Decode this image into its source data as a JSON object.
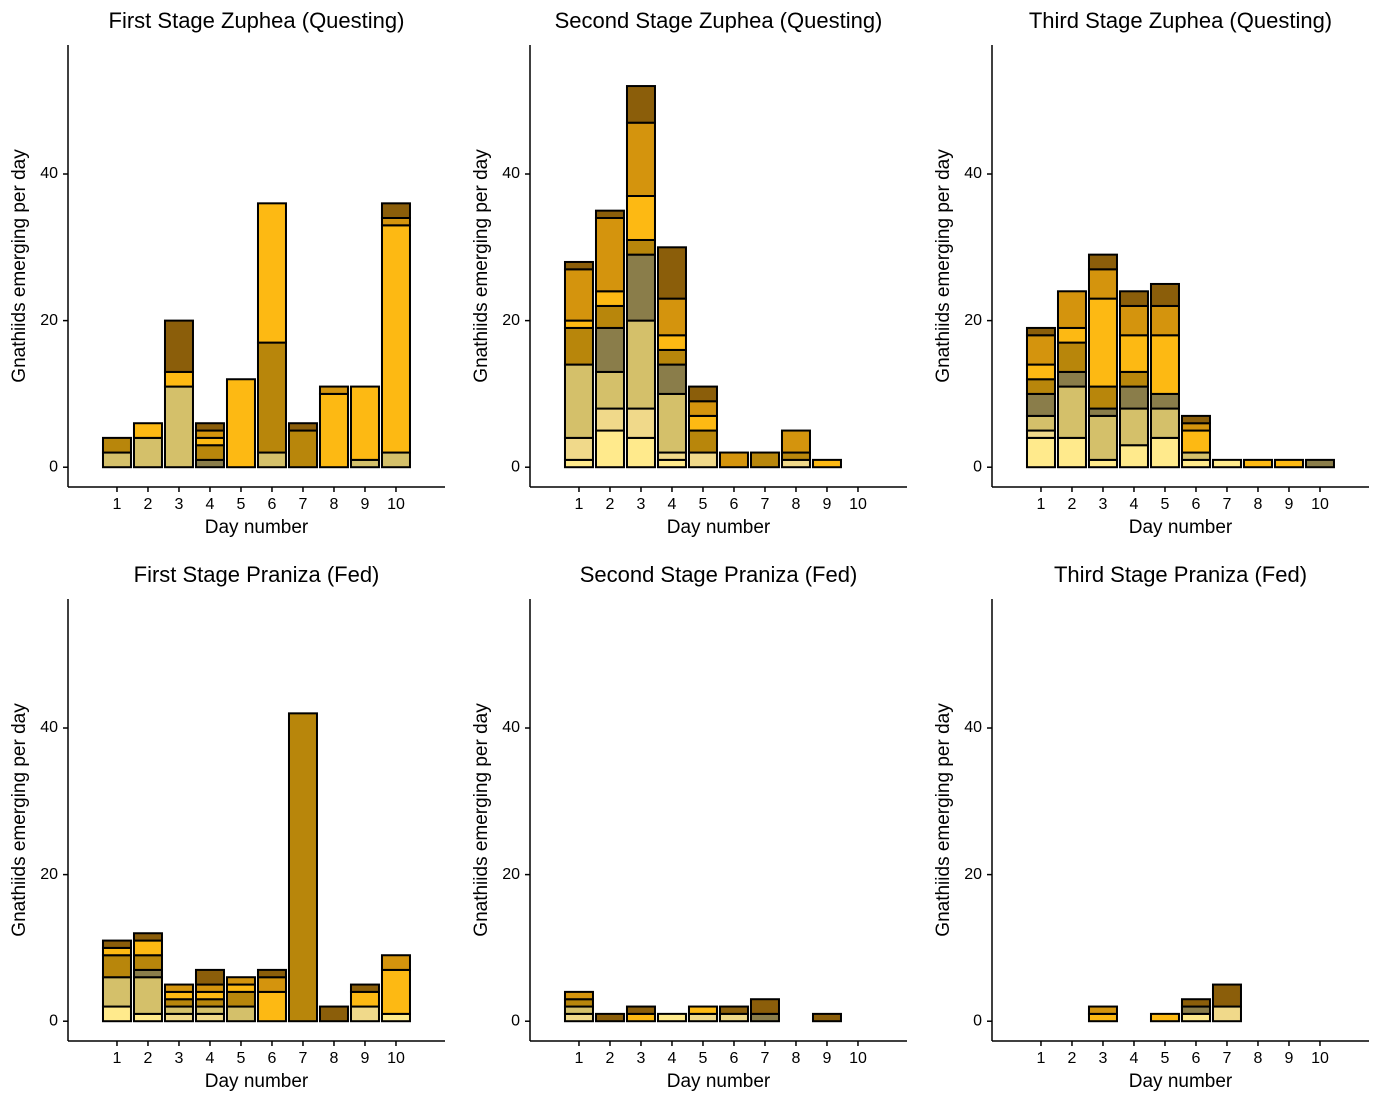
{
  "chart_data": [
    {
      "type": "bar",
      "stacked": true,
      "title": "First Stage Zuphea (Questing)",
      "x_label": "Day number",
      "y_label": "Gnathiids emerging per day",
      "categories": [
        "1",
        "2",
        "3",
        "4",
        "5",
        "6",
        "7",
        "8",
        "9",
        "10"
      ],
      "ylim": [
        -2.7,
        57.6
      ],
      "yticks": [
        0,
        20,
        40
      ],
      "series": [
        {
          "color": "#FFEA8C",
          "values": [
            0,
            0,
            0,
            0,
            0,
            0,
            0,
            0,
            0,
            0
          ]
        },
        {
          "color": "#F0D98A",
          "values": [
            0,
            0,
            0,
            0,
            0,
            0,
            0,
            0,
            0,
            0
          ]
        },
        {
          "color": "#D4C06A",
          "values": [
            2,
            4,
            11,
            0,
            0,
            2,
            0,
            0,
            1,
            2
          ]
        },
        {
          "color": "#8A7D4A",
          "values": [
            0,
            0,
            0,
            1,
            0,
            0,
            0,
            0,
            0,
            0
          ]
        },
        {
          "color": "#B8860B",
          "values": [
            2,
            0,
            0,
            2,
            0,
            15,
            5,
            0,
            0,
            0
          ]
        },
        {
          "color": "#FDB913",
          "values": [
            0,
            2,
            2,
            1,
            12,
            19,
            0,
            10,
            10,
            31
          ]
        },
        {
          "color": "#D4940D",
          "values": [
            0,
            0,
            0,
            1,
            0,
            0,
            0,
            1,
            0,
            1
          ]
        },
        {
          "color": "#8B5E0A",
          "values": [
            0,
            0,
            7,
            1,
            0,
            0,
            1,
            0,
            0,
            2
          ]
        }
      ]
    },
    {
      "type": "bar",
      "stacked": true,
      "title": "Second Stage Zuphea (Questing)",
      "x_label": "Day number",
      "y_label": "Gnathiids emerging per day",
      "categories": [
        "1",
        "2",
        "3",
        "4",
        "5",
        "6",
        "7",
        "8",
        "9",
        "10"
      ],
      "ylim": [
        -2.7,
        57.6
      ],
      "yticks": [
        0,
        20,
        40
      ],
      "series": [
        {
          "color": "#FFEA8C",
          "values": [
            1,
            5,
            4,
            1,
            0,
            0,
            0,
            0,
            0,
            0
          ]
        },
        {
          "color": "#F0D98A",
          "values": [
            3,
            3,
            4,
            1,
            2,
            0,
            0,
            1,
            0,
            0
          ]
        },
        {
          "color": "#D4C06A",
          "values": [
            10,
            5,
            12,
            8,
            0,
            0,
            0,
            0,
            0,
            0
          ]
        },
        {
          "color": "#8A7D4A",
          "values": [
            0,
            6,
            9,
            4,
            0,
            0,
            0,
            0,
            0,
            0
          ]
        },
        {
          "color": "#B8860B",
          "values": [
            5,
            3,
            2,
            2,
            3,
            0,
            2,
            1,
            0,
            0
          ]
        },
        {
          "color": "#FDB913",
          "values": [
            1,
            2,
            6,
            2,
            2,
            0,
            0,
            0,
            1,
            0
          ]
        },
        {
          "color": "#D4940D",
          "values": [
            7,
            10,
            10,
            5,
            2,
            2,
            0,
            3,
            0,
            0
          ]
        },
        {
          "color": "#8B5E0A",
          "values": [
            1,
            1,
            5,
            7,
            2,
            0,
            0,
            0,
            0,
            0
          ]
        }
      ]
    },
    {
      "type": "bar",
      "stacked": true,
      "title": "Third Stage Zuphea (Questing)",
      "x_label": "Day number",
      "y_label": "Gnathiids emerging per day",
      "categories": [
        "1",
        "2",
        "3",
        "4",
        "5",
        "6",
        "7",
        "8",
        "9",
        "10"
      ],
      "ylim": [
        -2.7,
        57.6
      ],
      "yticks": [
        0,
        20,
        40
      ],
      "series": [
        {
          "color": "#FFEA8C",
          "values": [
            4,
            4,
            1,
            3,
            4,
            1,
            1,
            0,
            0,
            0
          ]
        },
        {
          "color": "#F0D98A",
          "values": [
            1,
            0,
            0,
            0,
            0,
            0,
            0,
            0,
            0,
            0
          ]
        },
        {
          "color": "#D4C06A",
          "values": [
            2,
            7,
            6,
            5,
            4,
            1,
            0,
            0,
            0,
            0
          ]
        },
        {
          "color": "#8A7D4A",
          "values": [
            3,
            2,
            1,
            3,
            2,
            0,
            0,
            0,
            0,
            1
          ]
        },
        {
          "color": "#B8860B",
          "values": [
            2,
            4,
            3,
            2,
            0,
            0,
            0,
            0,
            0,
            0
          ]
        },
        {
          "color": "#FDB913",
          "values": [
            2,
            2,
            12,
            5,
            8,
            3,
            0,
            1,
            1,
            0
          ]
        },
        {
          "color": "#D4940D",
          "values": [
            4,
            5,
            4,
            4,
            4,
            1,
            0,
            0,
            0,
            0
          ]
        },
        {
          "color": "#8B5E0A",
          "values": [
            1,
            0,
            2,
            2,
            3,
            1,
            0,
            0,
            0,
            0
          ]
        }
      ]
    },
    {
      "type": "bar",
      "stacked": true,
      "title": "First Stage Praniza (Fed)",
      "x_label": "Day number",
      "y_label": "Gnathiids emerging per day",
      "categories": [
        "1",
        "2",
        "3",
        "4",
        "5",
        "6",
        "7",
        "8",
        "9",
        "10"
      ],
      "ylim": [
        -2.7,
        57.6
      ],
      "yticks": [
        0,
        20,
        40
      ],
      "series": [
        {
          "color": "#FFEA8C",
          "values": [
            2,
            1,
            0,
            0,
            0,
            0,
            0,
            0,
            0,
            1
          ]
        },
        {
          "color": "#F0D98A",
          "values": [
            0,
            0,
            1,
            1,
            0,
            0,
            0,
            0,
            2,
            0
          ]
        },
        {
          "color": "#D4C06A",
          "values": [
            4,
            5,
            1,
            1,
            2,
            0,
            0,
            0,
            0,
            0
          ]
        },
        {
          "color": "#8A7D4A",
          "values": [
            0,
            1,
            0,
            0,
            0,
            0,
            0,
            0,
            0,
            0
          ]
        },
        {
          "color": "#B8860B",
          "values": [
            3,
            2,
            1,
            1,
            2,
            0,
            42,
            0,
            0,
            0
          ]
        },
        {
          "color": "#FDB913",
          "values": [
            1,
            2,
            1,
            1,
            1,
            4,
            0,
            0,
            2,
            6
          ]
        },
        {
          "color": "#D4940D",
          "values": [
            0,
            0,
            1,
            1,
            1,
            2,
            0,
            0,
            0,
            2
          ]
        },
        {
          "color": "#8B5E0A",
          "values": [
            1,
            1,
            0,
            2,
            0,
            1,
            0,
            2,
            1,
            0
          ]
        }
      ]
    },
    {
      "type": "bar",
      "stacked": true,
      "title": "Second Stage Praniza (Fed)",
      "x_label": "Day number",
      "y_label": "Gnathiids emerging per day",
      "categories": [
        "1",
        "2",
        "3",
        "4",
        "5",
        "6",
        "7",
        "8",
        "9",
        "10"
      ],
      "ylim": [
        -2.7,
        57.6
      ],
      "yticks": [
        0,
        20,
        40
      ],
      "series": [
        {
          "color": "#FFEA8C",
          "values": [
            0,
            0,
            0,
            1,
            0,
            0,
            0,
            0,
            0,
            0
          ]
        },
        {
          "color": "#F0D98A",
          "values": [
            1,
            0,
            0,
            0,
            1,
            1,
            0,
            0,
            0,
            0
          ]
        },
        {
          "color": "#D4C06A",
          "values": [
            1,
            0,
            0,
            0,
            0,
            0,
            0,
            0,
            0,
            0
          ]
        },
        {
          "color": "#8A7D4A",
          "values": [
            0,
            0,
            0,
            0,
            0,
            0,
            1,
            0,
            0,
            0
          ]
        },
        {
          "color": "#B8860B",
          "values": [
            1,
            0,
            0,
            0,
            0,
            0,
            0,
            0,
            0,
            0
          ]
        },
        {
          "color": "#FDB913",
          "values": [
            0,
            0,
            1,
            0,
            1,
            0,
            0,
            0,
            0,
            0
          ]
        },
        {
          "color": "#D4940D",
          "values": [
            1,
            0,
            0,
            0,
            0,
            0,
            0,
            0,
            0,
            0
          ]
        },
        {
          "color": "#8B5E0A",
          "values": [
            0,
            1,
            1,
            0,
            0,
            1,
            2,
            0,
            1,
            0
          ]
        }
      ]
    },
    {
      "type": "bar",
      "stacked": true,
      "title": "Third Stage Praniza (Fed)",
      "x_label": "Day number",
      "y_label": "Gnathiids emerging per day",
      "categories": [
        "1",
        "2",
        "3",
        "4",
        "5",
        "6",
        "7",
        "8",
        "9",
        "10"
      ],
      "ylim": [
        -2.7,
        57.6
      ],
      "yticks": [
        0,
        20,
        40
      ],
      "series": [
        {
          "color": "#FFEA8C",
          "values": [
            0,
            0,
            0,
            0,
            0,
            1,
            0,
            0,
            0,
            0
          ]
        },
        {
          "color": "#F0D98A",
          "values": [
            0,
            0,
            0,
            0,
            0,
            0,
            2,
            0,
            0,
            0
          ]
        },
        {
          "color": "#D4C06A",
          "values": [
            0,
            0,
            0,
            0,
            0,
            0,
            0,
            0,
            0,
            0
          ]
        },
        {
          "color": "#8A7D4A",
          "values": [
            0,
            0,
            0,
            0,
            0,
            1,
            0,
            0,
            0,
            0
          ]
        },
        {
          "color": "#B8860B",
          "values": [
            0,
            0,
            0,
            0,
            0,
            0,
            0,
            0,
            0,
            0
          ]
        },
        {
          "color": "#FDB913",
          "values": [
            0,
            0,
            1,
            0,
            1,
            0,
            0,
            0,
            0,
            0
          ]
        },
        {
          "color": "#D4940D",
          "values": [
            0,
            0,
            1,
            0,
            0,
            0,
            0,
            0,
            0,
            0
          ]
        },
        {
          "color": "#8B5E0A",
          "values": [
            0,
            0,
            0,
            0,
            0,
            1,
            3,
            0,
            0,
            0
          ]
        }
      ]
    }
  ]
}
